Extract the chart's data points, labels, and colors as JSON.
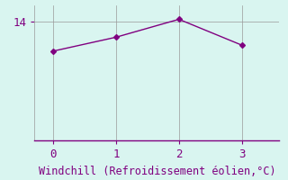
{
  "x": [
    0,
    1,
    2,
    3
  ],
  "y": [
    12.5,
    13.2,
    14.1,
    12.8
  ],
  "line_color": "#800080",
  "marker": "D",
  "marker_size": 3,
  "bg_color": "#d9f5f0",
  "grid_color": "#999999",
  "spine_color": "#800080",
  "xlabel": "Windchill (Refroidissement éolien,°C)",
  "xlabel_color": "#800080",
  "ylabel_color": "#800080",
  "tick_color": "#800080",
  "ytick_label": "14",
  "ytick_value": 14,
  "ylim": [
    8.0,
    14.8
  ],
  "xlim": [
    -0.3,
    3.6
  ],
  "font_family": "monospace",
  "xlabel_fontsize": 8.5,
  "tick_fontsize": 9
}
